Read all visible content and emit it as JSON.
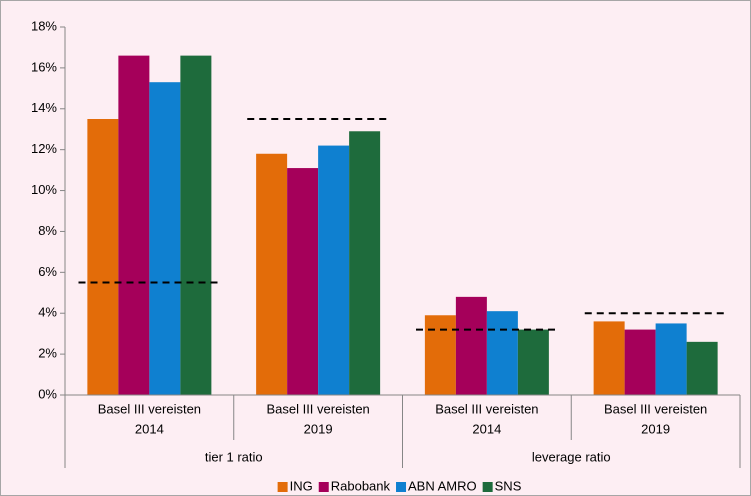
{
  "chart_data": {
    "type": "bar",
    "categories": [
      [
        "Basel III vereisten",
        "2014"
      ],
      [
        "Basel III vereisten",
        "2019"
      ],
      [
        "Basel III vereisten",
        "2014"
      ],
      [
        "Basel III vereisten",
        "2019"
      ]
    ],
    "groups": [
      "tier 1 ratio",
      "leverage ratio"
    ],
    "series": [
      {
        "name": "ING",
        "color": "#e36c09",
        "values": [
          13.5,
          11.8,
          3.9,
          3.6
        ]
      },
      {
        "name": "Rabobank",
        "color": "#a5005a",
        "values": [
          16.6,
          11.1,
          4.8,
          3.2
        ]
      },
      {
        "name": "ABN AMRO",
        "color": "#0f80d0",
        "values": [
          15.3,
          12.2,
          4.1,
          3.5
        ]
      },
      {
        "name": "SNS",
        "color": "#1e6b3c",
        "values": [
          16.6,
          12.9,
          3.2,
          2.6
        ]
      }
    ],
    "reference_values": [
      5.5,
      13.5,
      3.2,
      4.0
    ],
    "ylim": [
      0,
      18
    ],
    "yticks": [
      {
        "value": 0,
        "label": "0%"
      },
      {
        "value": 2,
        "label": "2%"
      },
      {
        "value": 4,
        "label": "4%"
      },
      {
        "value": 6,
        "label": "6%"
      },
      {
        "value": 8,
        "label": "8%"
      },
      {
        "value": 10,
        "label": "10%"
      },
      {
        "value": 12,
        "label": "12%"
      },
      {
        "value": 14,
        "label": "14%"
      },
      {
        "value": 16,
        "label": "16%"
      },
      {
        "value": 18,
        "label": "18%"
      }
    ],
    "legend": "bottom"
  }
}
